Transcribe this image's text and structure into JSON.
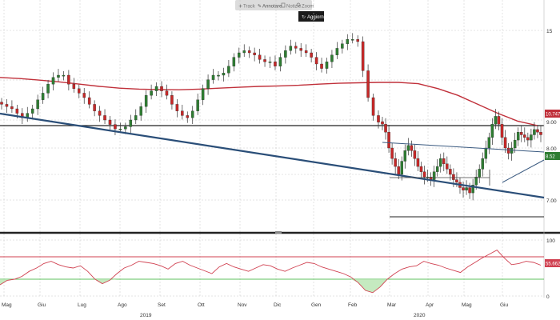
{
  "toolbar": {
    "buttons": [
      {
        "label": "Track",
        "icon": "plus-icon"
      },
      {
        "label": "Annotare",
        "icon": "pencil-icon"
      },
      {
        "label": "Notizie",
        "icon": "news-icon"
      },
      {
        "label": "Zoom",
        "icon": "zoom-icon"
      }
    ],
    "update_label": "Aggiorn"
  },
  "colors": {
    "up_candle": "#2e7d32",
    "down_candle": "#c62828",
    "moving_average": "#c0303a",
    "trendline": "#2a4e78",
    "rsi_line": "#d04050",
    "rsi_upper_band": "#d04050",
    "rsi_lower_band": "#5cc05c",
    "rsi_oversold_fill": "#b7e5b0"
  },
  "chart_data": [
    {
      "type": "candlestick",
      "panel": "price",
      "x_labels": [
        "Mag",
        "Giu",
        "Lug",
        "Ago",
        "Set",
        "Ott",
        "Nov",
        "Dic",
        "Gen",
        "Feb",
        "Mar",
        "Apr",
        "Mag",
        "Giu"
      ],
      "year_labels": [
        "2019",
        "2020"
      ],
      "y_ticks_upper": [
        "15"
      ],
      "y_ticks_lower": [
        "9.00",
        "8.00",
        "7.00"
      ],
      "last_price_label": "8.52",
      "moving_average_label": "10.747",
      "segment_1": {
        "description_range": "May 2019 - Feb 2020",
        "close": [
          11.7,
          11.6,
          11.5,
          11.3,
          11.1,
          11.3,
          11.5,
          11.9,
          12.2,
          12.6,
          12.9,
          13.0,
          13.0,
          12.6,
          12.4,
          12.2,
          12.0,
          11.7,
          11.4,
          11.2,
          11.0,
          10.8,
          10.6,
          10.6,
          10.7,
          11.0,
          11.2,
          11.6,
          12.1,
          12.3,
          12.5,
          12.3,
          12.1,
          11.7,
          11.4,
          11.2,
          11.1,
          11.4,
          11.9,
          12.4,
          12.8,
          13.0,
          13.0,
          13.1,
          13.4,
          13.8,
          14.0,
          14.1,
          14.0,
          13.9,
          13.7,
          13.6,
          13.6,
          13.4,
          13.8,
          14.1,
          14.3,
          14.2,
          14.1,
          14.0,
          13.8,
          13.5,
          13.3,
          13.6,
          13.9,
          14.2,
          14.4,
          14.6,
          14.6,
          14.5,
          13.2,
          12.0,
          11.2,
          10.9
        ]
      },
      "segment_2": {
        "description_range": "Feb 2020 - Jul 2020",
        "close": [
          8.9,
          8.6,
          8.0,
          7.6,
          7.3,
          7.0,
          7.5,
          7.9,
          8.1,
          7.9,
          7.6,
          7.3,
          7.1,
          6.9,
          6.9,
          6.8,
          7.1,
          7.3,
          7.6,
          7.4,
          7.2,
          7.0,
          6.8,
          6.7,
          6.5,
          6.4,
          6.5,
          6.3,
          6.6,
          6.9,
          7.2,
          7.6,
          8.0,
          8.4,
          8.9,
          9.2,
          8.9,
          8.4,
          8.0,
          7.8,
          8.0,
          8.3,
          8.6,
          8.5,
          8.4,
          8.3,
          8.5,
          8.7,
          8.6,
          8.5
        ]
      },
      "moving_average": {
        "name": "Media mobile",
        "values": [
          12.9,
          12.85,
          12.78,
          12.7,
          12.6,
          12.5,
          12.42,
          12.38,
          12.36,
          12.35,
          12.38,
          12.42,
          12.46,
          12.5,
          12.52,
          12.55,
          12.6,
          12.64,
          12.66,
          12.68,
          12.68,
          12.62,
          12.4,
          12.1,
          11.7,
          11.3,
          10.95,
          10.75
        ]
      }
    },
    {
      "type": "line",
      "panel": "rsi",
      "name": "RSI",
      "y_ticks": [
        "100",
        "0"
      ],
      "last_value_label": "55.6625",
      "upper_band": 70,
      "lower_band": 30,
      "values": [
        20,
        28,
        30,
        35,
        44,
        50,
        58,
        62,
        56,
        52,
        50,
        54,
        44,
        30,
        22,
        28,
        40,
        50,
        55,
        62,
        60,
        58,
        54,
        48,
        58,
        62,
        55,
        50,
        45,
        40,
        52,
        58,
        52,
        48,
        44,
        50,
        56,
        54,
        48,
        44,
        50,
        55,
        60,
        58,
        52,
        48,
        44,
        40,
        34,
        24,
        10,
        6,
        16,
        30,
        40,
        48,
        52,
        54,
        62,
        58,
        55,
        50,
        46,
        42,
        52,
        60,
        68,
        75,
        82,
        68,
        56,
        58,
        62,
        60,
        55
      ]
    }
  ]
}
